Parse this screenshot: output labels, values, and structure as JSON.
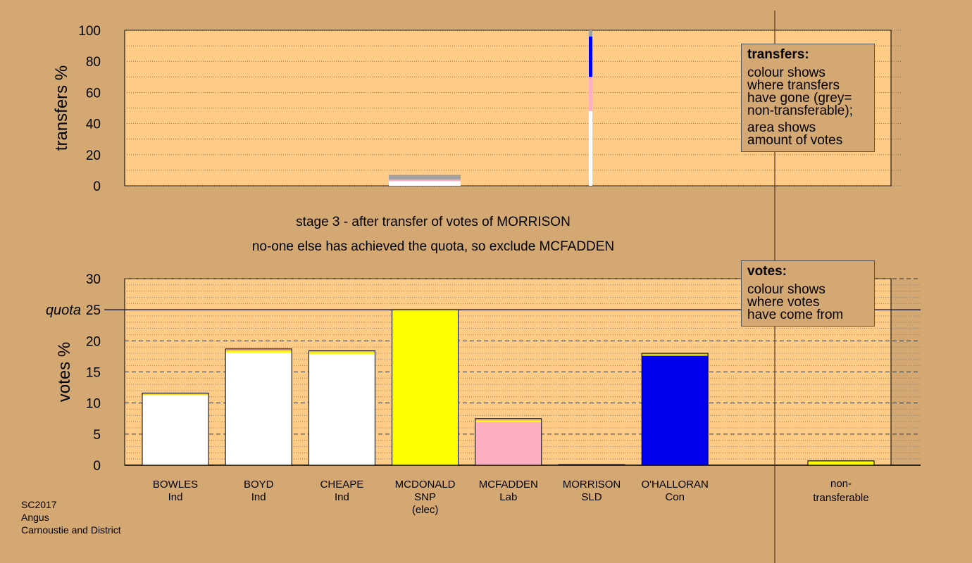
{
  "stage_title": "stage 3 - after transfer of votes of MORRISON",
  "stage_subtitle": "no-one else has achieved the quota, so exclude MCFADDEN",
  "legend_transfers": {
    "title": "transfers:",
    "lines": [
      "colour shows",
      "where transfers",
      "have gone (grey=",
      "non-transferable);"
    ],
    "lines2": [
      "area shows",
      "amount of votes"
    ]
  },
  "legend_votes": {
    "title": "votes:",
    "lines": [
      "colour shows",
      "where votes",
      "have come from"
    ]
  },
  "footer": {
    "line1": "SC2017",
    "line2": "Angus",
    "line3": "Carnoustie and District"
  },
  "colors": {
    "background": "#d4a872",
    "plot_bg": "#ffcc88",
    "Ind": "#ffffff",
    "SNP": "#ffff00",
    "Lab": "#ffb0c0",
    "SLD": "#d4a060",
    "Con": "#0000ee",
    "nontransferable": "#a0a0a0"
  },
  "chart_data": [
    {
      "type": "bar",
      "subtype": "stacked",
      "ylabel": "transfers %",
      "ylim": [
        0,
        100
      ],
      "yticks": [
        0,
        20,
        40,
        60,
        80,
        100
      ],
      "note": "transfers of MORRISON's votes; bar width shows amount of votes",
      "transfer_bar": {
        "source": "MORRISON",
        "segments": [
          {
            "to": "Ind",
            "from_pct": 0,
            "to_pct": 48
          },
          {
            "to": "Lab",
            "from_pct": 48,
            "to_pct": 70
          },
          {
            "to": "Con",
            "from_pct": 70,
            "to_pct": 96
          },
          {
            "to": "nontransferable",
            "from_pct": 96,
            "to_pct": 100
          }
        ]
      },
      "earlier_bar": {
        "segments": [
          {
            "to": "Ind",
            "from_pct": 0,
            "to_pct": 3
          },
          {
            "to": "Lab",
            "from_pct": 3,
            "to_pct": 4
          },
          {
            "to": "nontransferable",
            "from_pct": 4,
            "to_pct": 7
          }
        ]
      }
    },
    {
      "type": "bar",
      "subtype": "stacked",
      "ylabel": "votes %",
      "ylim": [
        0,
        30
      ],
      "yticks": [
        0,
        5,
        10,
        15,
        20,
        25,
        30
      ],
      "quota": 25,
      "quota_label": "quota",
      "categories": [
        {
          "name": "BOWLES",
          "party": "Ind",
          "extra": "",
          "segments": [
            {
              "c": "Ind",
              "v": 11.2
            },
            {
              "c": "SNP",
              "v": 0.2
            },
            {
              "c": "SLD",
              "v": 0.1
            },
            {
              "c": "Lab",
              "v": 0.1
            }
          ]
        },
        {
          "name": "BOYD",
          "party": "Ind",
          "extra": "",
          "segments": [
            {
              "c": "Ind",
              "v": 18.1
            },
            {
              "c": "SNP",
              "v": 0.3
            },
            {
              "c": "SLD",
              "v": 0.1
            },
            {
              "c": "Lab",
              "v": 0.2
            }
          ]
        },
        {
          "name": "CHEAPE",
          "party": "Ind",
          "extra": "",
          "segments": [
            {
              "c": "Ind",
              "v": 17.9
            },
            {
              "c": "SNP",
              "v": 0.3
            },
            {
              "c": "SLD",
              "v": 0.1
            },
            {
              "c": "Lab",
              "v": 0.1
            }
          ]
        },
        {
          "name": "MCDONALD",
          "party": "SNP",
          "extra": "(elec)",
          "segments": [
            {
              "c": "SNP",
              "v": 25.0
            }
          ]
        },
        {
          "name": "MCFADDEN",
          "party": "Lab",
          "extra": "",
          "segments": [
            {
              "c": "Lab",
              "v": 6.9
            },
            {
              "c": "SNP",
              "v": 0.3
            },
            {
              "c": "SLD",
              "v": 0.1
            },
            {
              "c": "Lab",
              "v": 0.2
            }
          ]
        },
        {
          "name": "MORRISON",
          "party": "SLD",
          "extra": "",
          "segments": [
            {
              "c": "SLD",
              "v": 0.1
            }
          ]
        },
        {
          "name": "O'HALLORAN",
          "party": "Con",
          "extra": "",
          "segments": [
            {
              "c": "Con",
              "v": 17.6
            },
            {
              "c": "SNP",
              "v": 0.2
            },
            {
              "c": "SLD",
              "v": 0.2
            }
          ]
        }
      ],
      "nontransferable": {
        "label1": "non-",
        "label2": "transferable",
        "segments": [
          {
            "c": "SNP",
            "v": 0.6
          },
          {
            "c": "nontransferable",
            "v": 0.1
          }
        ]
      }
    }
  ]
}
